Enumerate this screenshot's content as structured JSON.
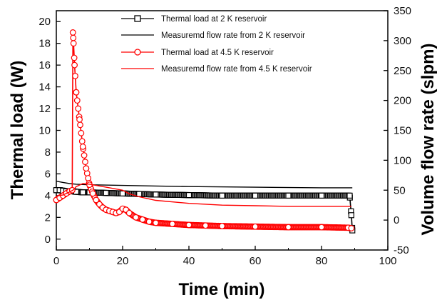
{
  "chart_data": {
    "type": "line",
    "xlabel": "Time (min)",
    "ylabel": "Thermal load (W)",
    "y2label": "Volume flow rate (slpm)",
    "xlim": [
      0,
      100
    ],
    "ylim": [
      -1,
      21
    ],
    "y2lim": [
      -50,
      350
    ],
    "x_ticks": [
      "0",
      "20",
      "40",
      "60",
      "80",
      "100"
    ],
    "y_ticks": [
      "0",
      "2",
      "4",
      "6",
      "8",
      "10",
      "12",
      "14",
      "16",
      "18",
      "20"
    ],
    "y2_ticks": [
      "-50",
      "0",
      "50",
      "100",
      "150",
      "200",
      "250",
      "300",
      "350"
    ],
    "grid": false,
    "legend_position": "top-right",
    "series": [
      {
        "name": "Thermal load at 2 K reservoir",
        "axis": "left",
        "color": "#000000",
        "marker": "square",
        "x": [
          0,
          1,
          2,
          3,
          4,
          5,
          6,
          8,
          10,
          15,
          20,
          25,
          30,
          40,
          50,
          60,
          70,
          80,
          88.5,
          89,
          89.3
        ],
        "y": [
          4.5,
          4.5,
          4.45,
          4.4,
          4.4,
          4.4,
          4.35,
          4.3,
          4.3,
          4.25,
          4.2,
          4.15,
          4.1,
          4.05,
          4.0,
          4.0,
          4.0,
          4.0,
          4.0,
          2.2,
          0.8
        ]
      },
      {
        "name": "Measuremd flow rate from 2 K reservoir",
        "axis": "right",
        "color": "#000000",
        "marker": "none",
        "x": [
          0,
          2,
          4,
          6,
          10,
          20,
          30,
          40,
          60,
          80,
          89,
          89.3
        ],
        "y": [
          65,
          63,
          61,
          60,
          59,
          58,
          57,
          56,
          55,
          54,
          54,
          54
        ]
      },
      {
        "name": "Thermal load at 4.5 K reservoir",
        "axis": "left",
        "color": "#ff0000",
        "marker": "circle",
        "x": [
          0,
          1,
          2,
          3,
          4,
          4.8,
          5.0,
          5.2,
          5.5,
          6,
          7,
          8,
          9,
          10,
          11,
          12,
          13,
          14,
          15,
          16,
          17,
          18,
          19,
          20,
          21,
          22,
          24,
          26,
          28,
          30,
          35,
          40,
          45,
          50,
          60,
          70,
          80,
          88,
          89
        ],
        "y": [
          3.6,
          3.8,
          4.0,
          4.2,
          4.4,
          4.5,
          19.0,
          18.0,
          16.0,
          13.5,
          11.0,
          8.5,
          6.5,
          5.0,
          4.2,
          3.6,
          3.2,
          2.9,
          2.7,
          2.6,
          2.5,
          2.4,
          2.5,
          2.8,
          2.7,
          2.4,
          2.0,
          1.8,
          1.6,
          1.5,
          1.4,
          1.3,
          1.25,
          1.2,
          1.15,
          1.1,
          1.1,
          1.05,
          1.0
        ]
      },
      {
        "name": "Measuremd flow rate from 4.5 K reservoir",
        "axis": "right",
        "color": "#ff0000",
        "marker": "none",
        "x": [
          0,
          2,
          4,
          5,
          6,
          8,
          10,
          12,
          15,
          18,
          20,
          22,
          25,
          30,
          40,
          50,
          60,
          70,
          80,
          89
        ],
        "y": [
          40,
          42,
          47,
          50,
          56,
          61,
          60,
          58,
          55,
          52,
          50,
          44,
          39,
          33,
          28,
          25,
          24,
          23,
          23,
          23
        ]
      }
    ]
  }
}
